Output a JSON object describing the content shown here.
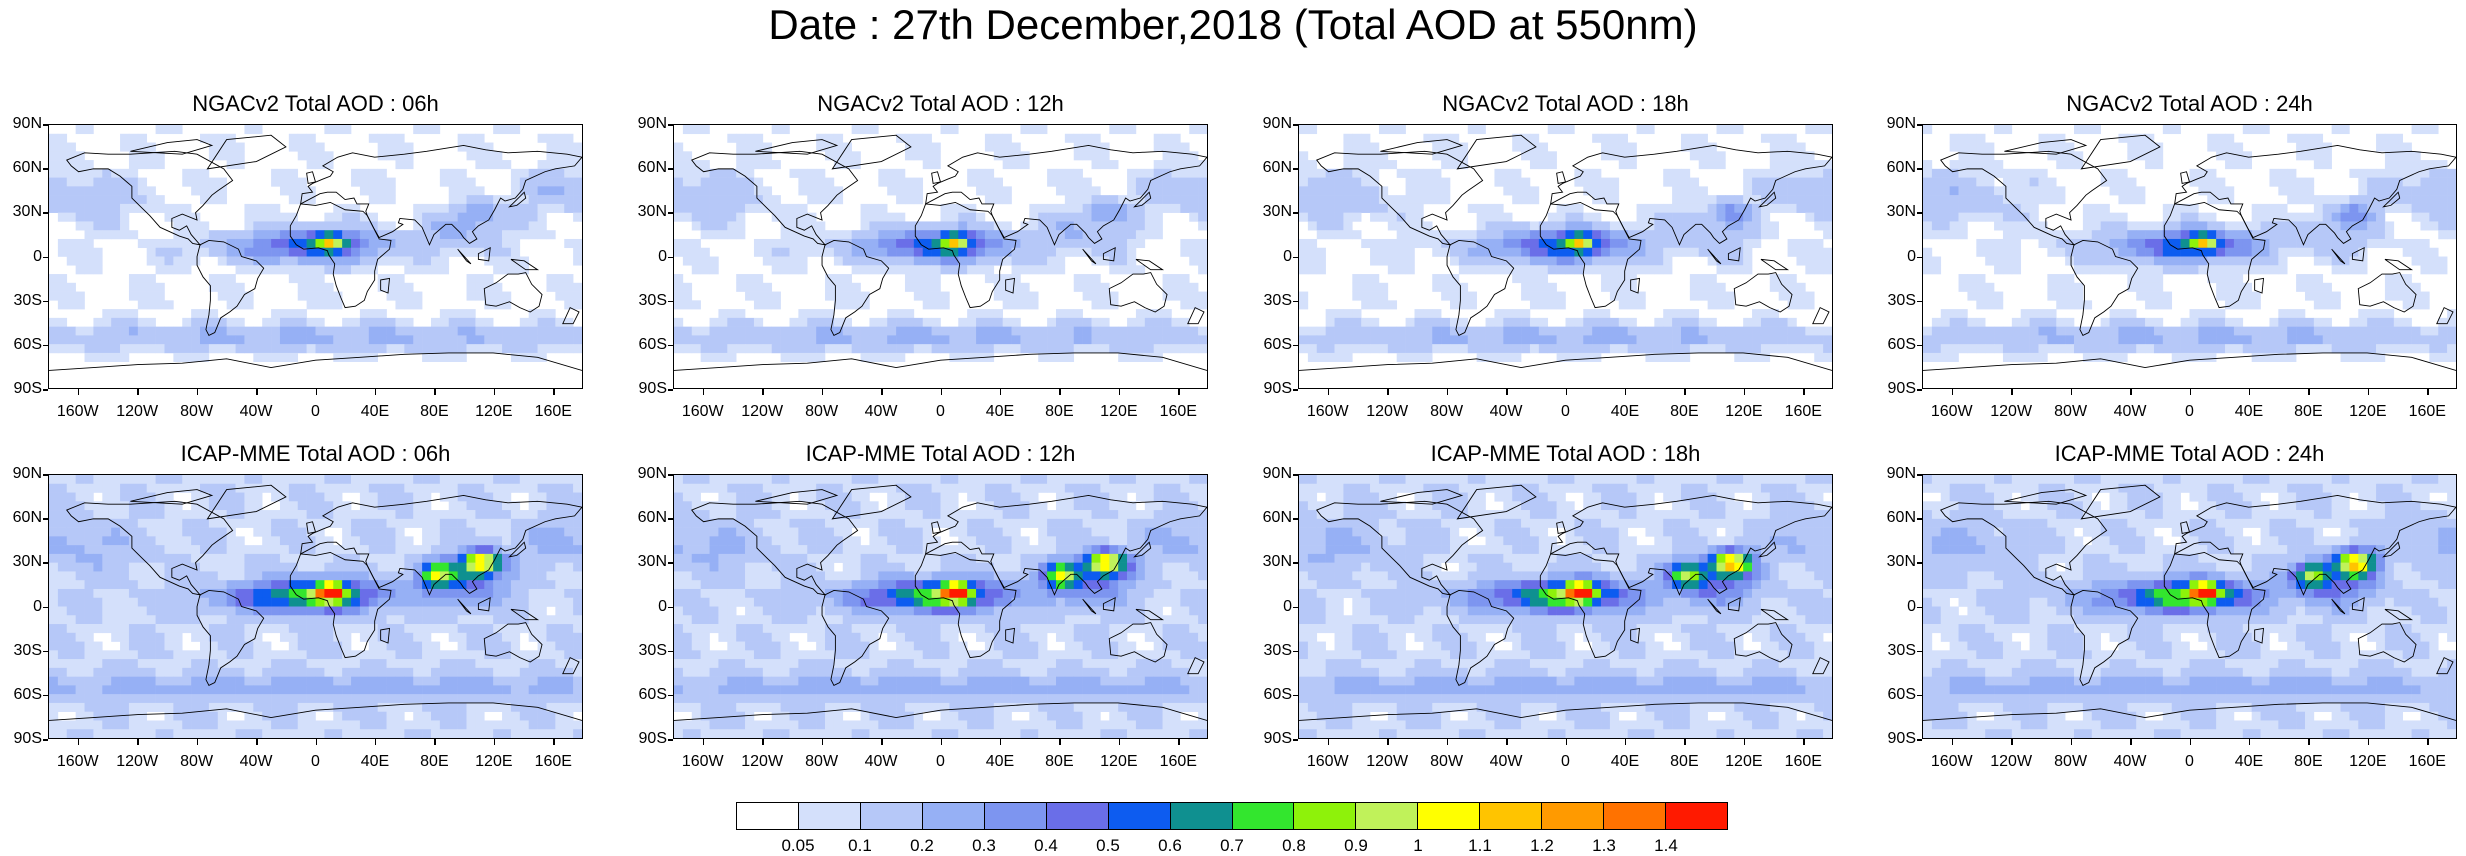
{
  "figure": {
    "title": "Date : 27th December,2018 (Total AOD at 550nm)"
  },
  "panels": [
    {
      "title": "NGACv2 Total AOD : 06h",
      "model": "NGACv2",
      "hour": "06h"
    },
    {
      "title": "NGACv2 Total AOD : 12h",
      "model": "NGACv2",
      "hour": "12h"
    },
    {
      "title": "NGACv2 Total AOD : 18h",
      "model": "NGACv2",
      "hour": "18h"
    },
    {
      "title": "NGACv2 Total AOD : 24h",
      "model": "NGACv2",
      "hour": "24h"
    },
    {
      "title": "ICAP-MME Total AOD : 06h",
      "model": "ICAP-MME",
      "hour": "06h"
    },
    {
      "title": "ICAP-MME Total AOD : 12h",
      "model": "ICAP-MME",
      "hour": "12h"
    },
    {
      "title": "ICAP-MME Total AOD : 18h",
      "model": "ICAP-MME",
      "hour": "18h"
    },
    {
      "title": "ICAP-MME Total AOD : 24h",
      "model": "ICAP-MME",
      "hour": "24h"
    }
  ],
  "axes": {
    "lat_labels": [
      "90N",
      "60N",
      "30N",
      "0",
      "30S",
      "60S",
      "90S"
    ],
    "lon_labels": [
      "160W",
      "120W",
      "80W",
      "40W",
      "0",
      "40E",
      "80E",
      "120E",
      "160E"
    ]
  },
  "colorbar": {
    "levels": [
      "0.05",
      "0.1",
      "0.2",
      "0.3",
      "0.4",
      "0.5",
      "0.6",
      "0.7",
      "0.8",
      "0.9",
      "1",
      "1.1",
      "1.2",
      "1.3",
      "1.4"
    ],
    "colors": [
      "#ffffff",
      "#d4e0fb",
      "#b6c8f8",
      "#96b0f5",
      "#7d95f0",
      "#6a6ee8",
      "#0d5cf0",
      "#0f9090",
      "#33e62e",
      "#8ef20a",
      "#c0f25a",
      "#ffff00",
      "#ffc400",
      "#ff9a00",
      "#ff7200",
      "#ff1a00"
    ]
  }
}
